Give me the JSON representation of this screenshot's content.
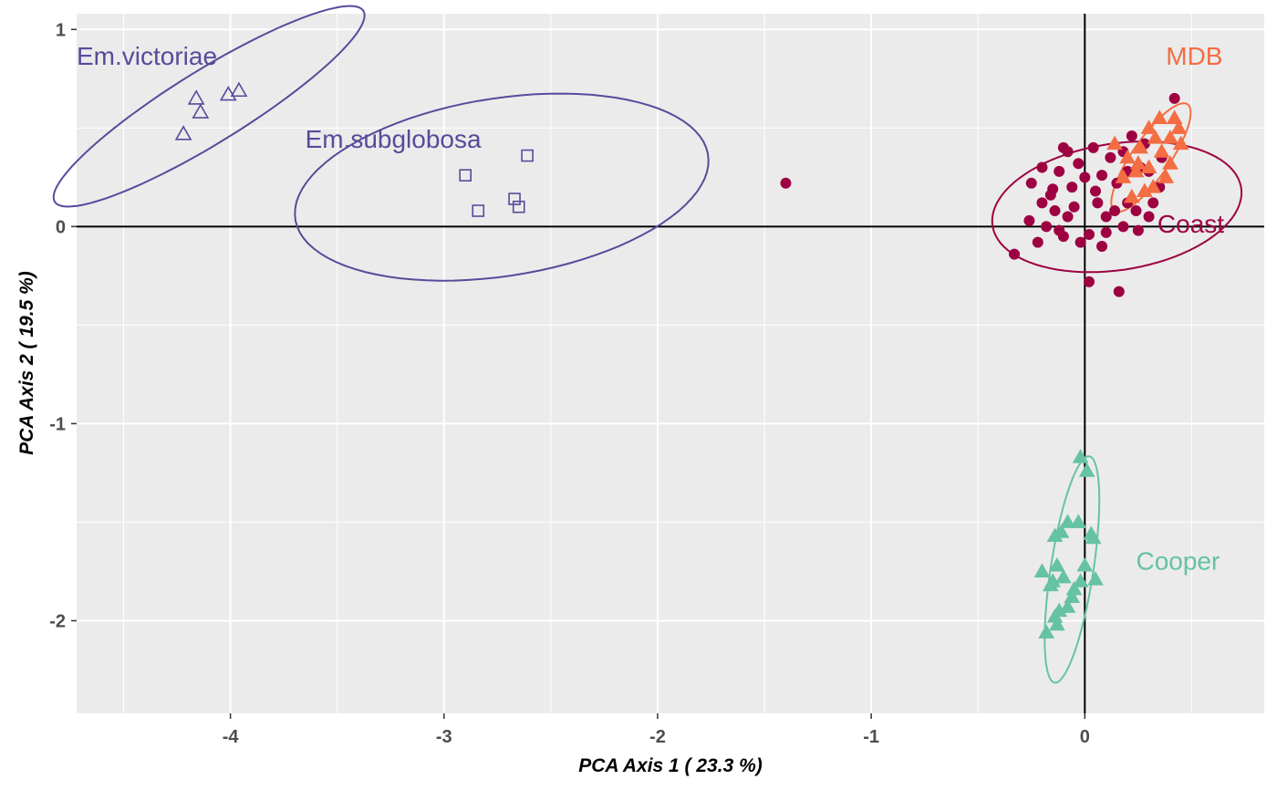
{
  "chart_data": {
    "type": "scatter",
    "xlabel": "PCA Axis 1 ( 23.3 %)",
    "ylabel": "PCA Axis 2 ( 19.5 %)",
    "xlim": [
      -4.72,
      0.84
    ],
    "ylim": [
      -2.47,
      1.08
    ],
    "x_ticks": [
      -4,
      -3,
      -2,
      -1,
      0
    ],
    "x_tick_labels": [
      "-4",
      "-3",
      "-2",
      "-1",
      "0"
    ],
    "y_ticks": [
      1,
      0,
      -1,
      -2
    ],
    "y_tick_labels": [
      "1",
      "0",
      "-1",
      "-2"
    ],
    "grid": true,
    "reference_lines": {
      "x": 0,
      "y": 0
    },
    "panel_color": "#ebebeb",
    "series": [
      {
        "name": "Em.victoriae",
        "color": "#574b9a",
        "marker": "triangle-open",
        "points": [
          [
            -4.22,
            0.47
          ],
          [
            -4.16,
            0.65
          ],
          [
            -4.14,
            0.58
          ],
          [
            -4.01,
            0.67
          ],
          [
            -3.96,
            0.69
          ]
        ],
        "ellipse": {
          "cx": -4.1,
          "cy": 0.61,
          "rx": 0.87,
          "ry": 0.18,
          "angle_deg": 34
        },
        "label_position": [
          -4.72,
          0.82
        ]
      },
      {
        "name": "Em.subglobosa",
        "color": "#574b9a",
        "marker": "square-open",
        "points": [
          [
            -2.9,
            0.26
          ],
          [
            -2.84,
            0.08
          ],
          [
            -2.67,
            0.14
          ],
          [
            -2.65,
            0.1
          ],
          [
            -2.61,
            0.36
          ]
        ],
        "ellipse": {
          "cx": -2.73,
          "cy": 0.2,
          "rx": 0.98,
          "ry": 0.45,
          "angle_deg": 10
        },
        "label_position": [
          -3.65,
          0.4
        ]
      },
      {
        "name": "Coast",
        "color": "#9e0142",
        "marker": "circle",
        "points": [
          [
            -1.4,
            0.22
          ],
          [
            -0.33,
            -0.14
          ],
          [
            0.16,
            -0.33
          ],
          [
            0.02,
            -0.28
          ],
          [
            0.42,
            0.65
          ],
          [
            -0.08,
            0.38
          ],
          [
            -0.12,
            0.28
          ],
          [
            -0.15,
            0.19
          ],
          [
            -0.2,
            0.12
          ],
          [
            -0.25,
            0.22
          ],
          [
            -0.1,
            -0.05
          ],
          [
            0.05,
            0.18
          ],
          [
            0.1,
            0.05
          ],
          [
            0.2,
            0.12
          ],
          [
            0.3,
            0.28
          ],
          [
            0.25,
            -0.02
          ],
          [
            -0.05,
            0.1
          ],
          [
            0.12,
            0.35
          ],
          [
            0.28,
            0.42
          ],
          [
            0.35,
            0.2
          ],
          [
            -0.02,
            -0.08
          ],
          [
            0.08,
            -0.1
          ],
          [
            -0.18,
            0.0
          ],
          [
            -0.22,
            -0.08
          ],
          [
            0.18,
            0.0
          ],
          [
            0.24,
            0.08
          ],
          [
            0.0,
            0.25
          ],
          [
            -0.08,
            0.05
          ],
          [
            0.15,
            0.22
          ],
          [
            0.3,
            0.05
          ],
          [
            -0.03,
            0.32
          ],
          [
            0.04,
            0.4
          ],
          [
            0.22,
            0.46
          ],
          [
            -0.12,
            -0.02
          ],
          [
            0.06,
            0.12
          ],
          [
            0.1,
            -0.03
          ],
          [
            -0.16,
            0.16
          ],
          [
            0.26,
            0.3
          ],
          [
            -0.06,
            0.2
          ],
          [
            0.32,
            0.12
          ],
          [
            0.2,
            0.28
          ],
          [
            -0.1,
            0.4
          ],
          [
            -0.26,
            0.03
          ],
          [
            0.14,
            0.08
          ],
          [
            0.02,
            -0.04
          ],
          [
            -0.2,
            0.3
          ],
          [
            0.36,
            0.35
          ],
          [
            0.18,
            0.38
          ],
          [
            -0.14,
            0.08
          ],
          [
            0.08,
            0.26
          ]
        ],
        "ellipse": {
          "cx": 0.15,
          "cy": 0.1,
          "rx": 0.59,
          "ry": 0.32,
          "angle_deg": 10
        },
        "label_position": [
          0.34,
          -0.03
        ]
      },
      {
        "name": "MDB",
        "color": "#f46d43",
        "marker": "triangle",
        "points": [
          [
            0.14,
            0.42
          ],
          [
            0.2,
            0.35
          ],
          [
            0.24,
            0.28
          ],
          [
            0.3,
            0.5
          ],
          [
            0.36,
            0.38
          ],
          [
            0.42,
            0.55
          ],
          [
            0.45,
            0.42
          ],
          [
            0.38,
            0.25
          ],
          [
            0.28,
            0.18
          ],
          [
            0.33,
            0.45
          ],
          [
            0.4,
            0.32
          ],
          [
            0.22,
            0.15
          ],
          [
            0.3,
            0.3
          ],
          [
            0.44,
            0.5
          ],
          [
            0.26,
            0.4
          ],
          [
            0.35,
            0.55
          ],
          [
            0.18,
            0.25
          ],
          [
            0.4,
            0.45
          ],
          [
            0.32,
            0.2
          ],
          [
            0.25,
            0.32
          ]
        ],
        "ellipse": {
          "cx": 0.31,
          "cy": 0.35,
          "rx": 0.32,
          "ry": 0.09,
          "angle_deg": 58
        },
        "label_position": [
          0.38,
          0.82
        ]
      },
      {
        "name": "Cooper",
        "color": "#66c2a5",
        "marker": "triangle",
        "points": [
          [
            -0.02,
            -1.17
          ],
          [
            0.01,
            -1.24
          ],
          [
            -0.08,
            -1.5
          ],
          [
            -0.03,
            -1.5
          ],
          [
            0.03,
            -1.56
          ],
          [
            0.04,
            -1.58
          ],
          [
            -0.11,
            -1.55
          ],
          [
            -0.14,
            -1.57
          ],
          [
            -0.2,
            -1.75
          ],
          [
            -0.13,
            -1.72
          ],
          [
            -0.15,
            -1.8
          ],
          [
            -0.1,
            -1.78
          ],
          [
            -0.02,
            -1.8
          ],
          [
            -0.05,
            -1.84
          ],
          [
            0.05,
            -1.79
          ],
          [
            -0.16,
            -1.82
          ],
          [
            -0.12,
            -1.95
          ],
          [
            -0.08,
            -1.93
          ],
          [
            -0.14,
            -1.98
          ],
          [
            -0.13,
            -2.02
          ],
          [
            -0.18,
            -2.06
          ],
          [
            -0.06,
            -1.88
          ],
          [
            0.0,
            -1.72
          ]
        ],
        "ellipse": {
          "cx": -0.06,
          "cy": -1.74,
          "rx": 0.58,
          "ry": 0.1,
          "angle_deg": 82
        },
        "label_position": [
          0.24,
          -1.74
        ]
      }
    ]
  }
}
